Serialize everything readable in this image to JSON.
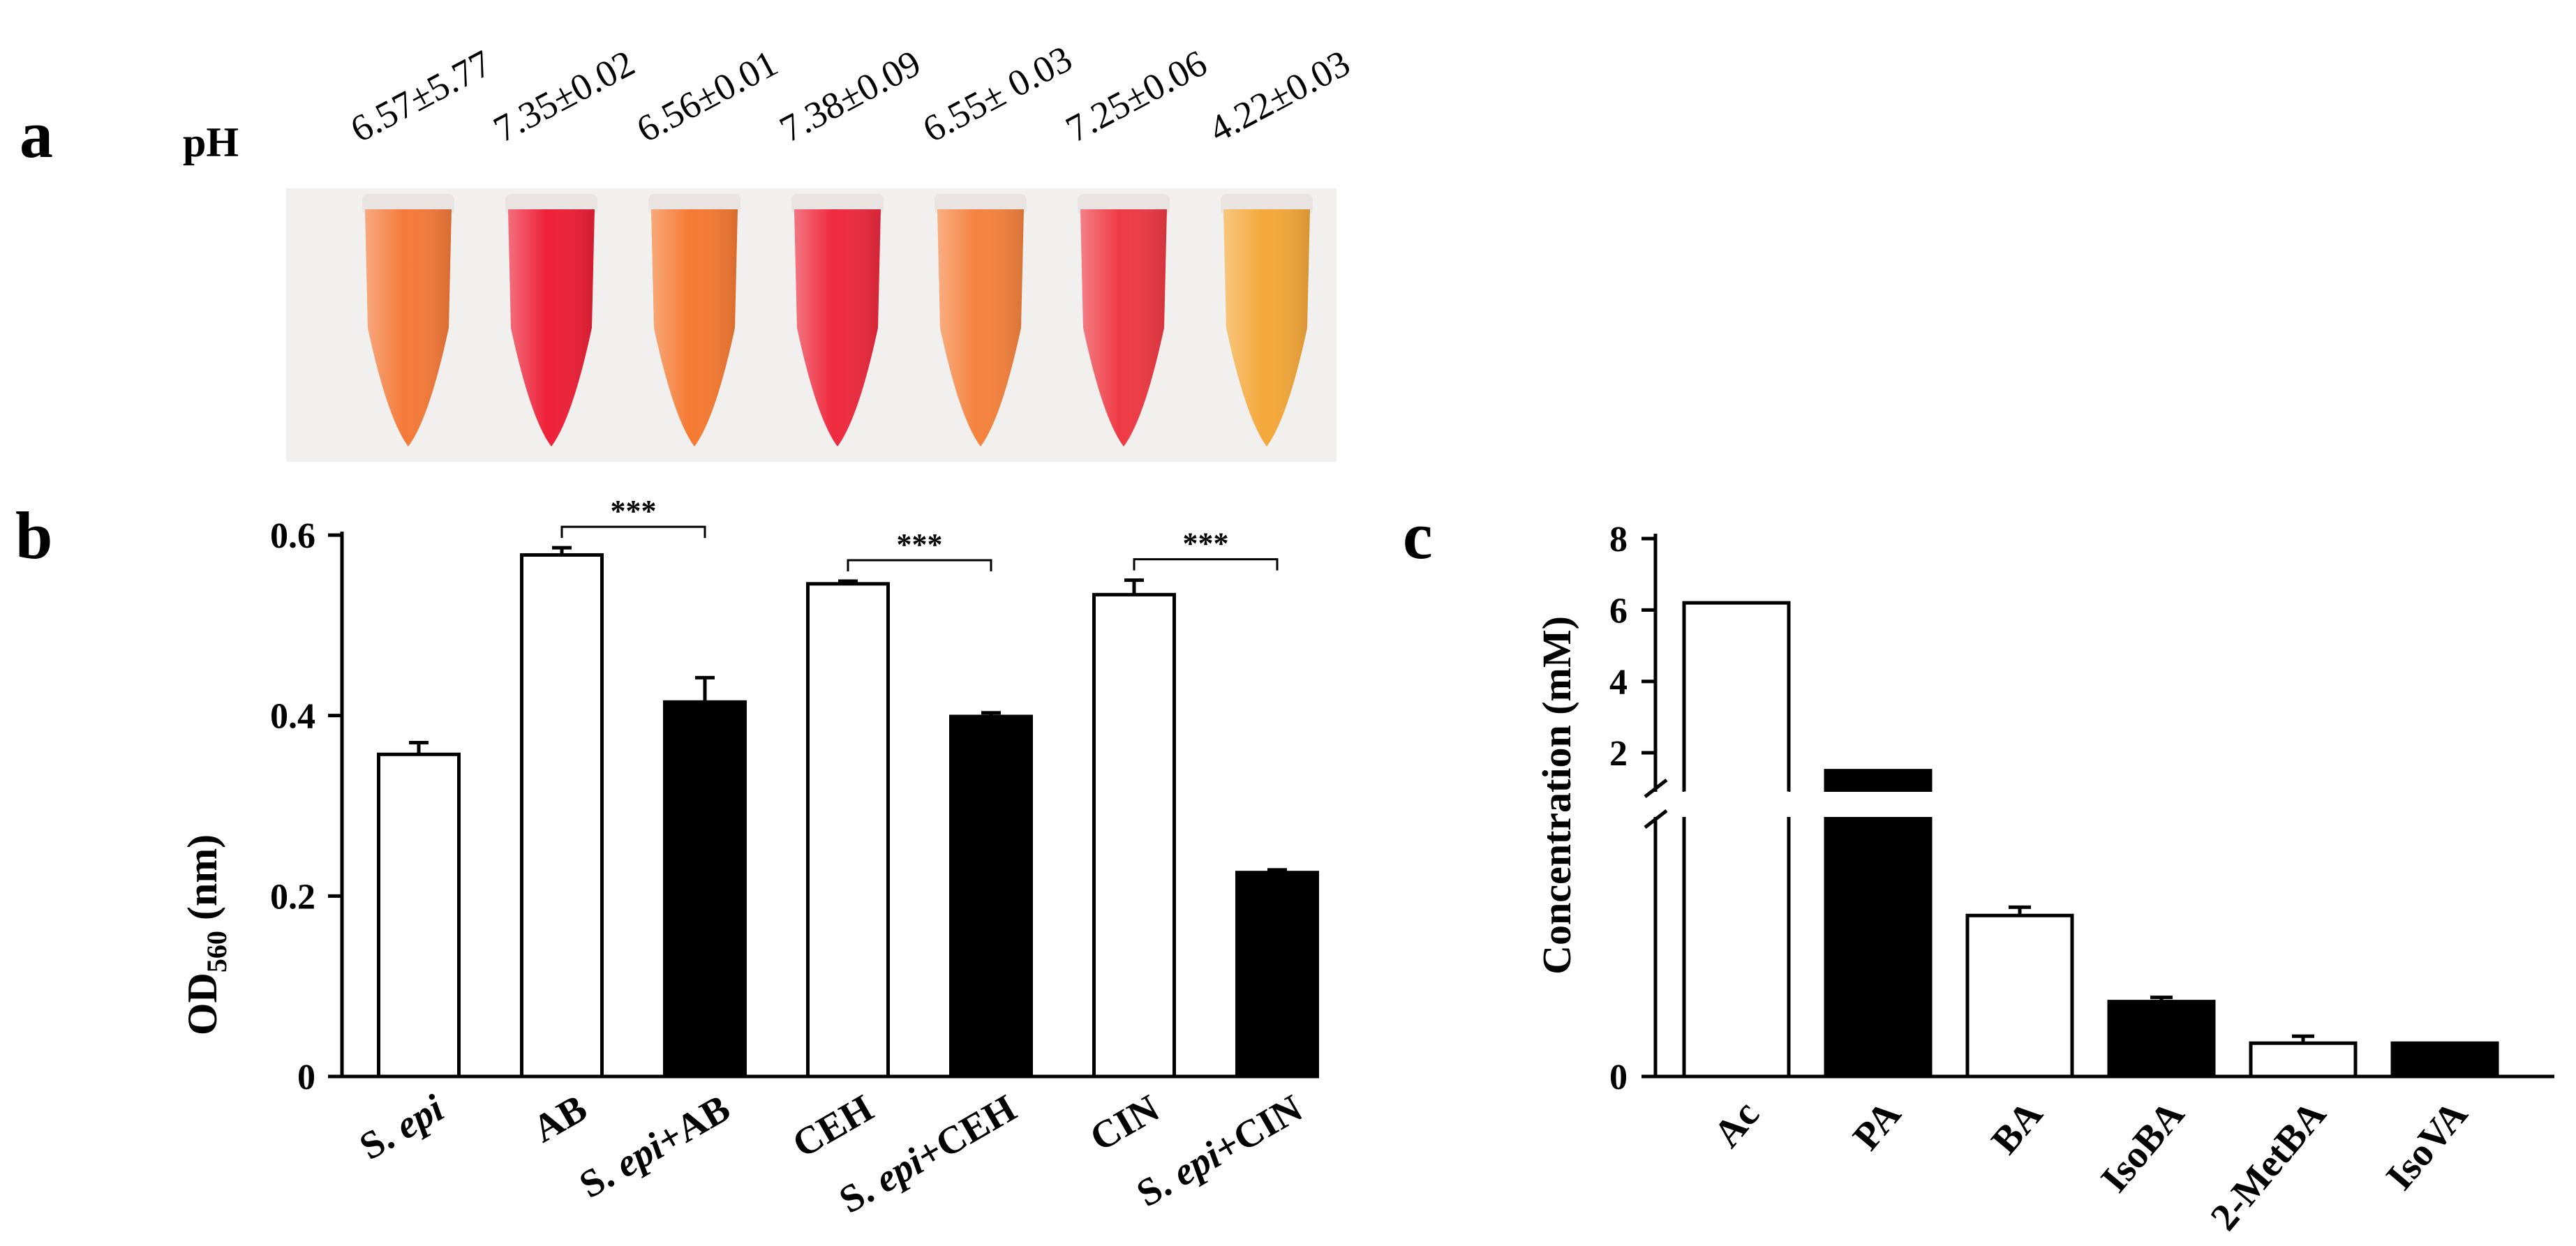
{
  "figure": {
    "panel_a": {
      "label": "a",
      "row_label": "pH",
      "ph_values": [
        "6.57±5.77",
        "7.35±0.02",
        "6.56±0.01",
        "7.38±0.09",
        "6.55± 0.03",
        "7.25±0.06",
        "4.22±0.03"
      ],
      "tube_colors": [
        "#f47a3a",
        "#ee2038",
        "#f57a32",
        "#ee2a3e",
        "#f5823e",
        "#ef3a44",
        "#f4a83a"
      ]
    }
  },
  "chart_data": [
    {
      "id": "b",
      "type": "bar",
      "title": "",
      "panel_label": "b",
      "ylabel_main": "OD",
      "ylabel_sub": "560",
      "ylabel_unit": " (nm)",
      "xlabel": "",
      "ylim": [
        0,
        0.6
      ],
      "yticks": [
        0,
        0.2,
        0.4,
        0.6
      ],
      "ytick_labels": [
        "0",
        "0.2",
        "0.4",
        "0.6"
      ],
      "categories": [
        {
          "parts": [
            {
              "t": "S. ",
              "i": false
            },
            {
              "t": "epi",
              "i": true
            }
          ]
        },
        {
          "parts": [
            {
              "t": "AB",
              "i": false
            }
          ]
        },
        {
          "parts": [
            {
              "t": "S. ",
              "i": false
            },
            {
              "t": "epi",
              "i": true
            },
            {
              "t": "+AB",
              "i": false
            }
          ]
        },
        {
          "parts": [
            {
              "t": "CEH",
              "i": false
            }
          ]
        },
        {
          "parts": [
            {
              "t": "S. ",
              "i": false
            },
            {
              "t": "epi",
              "i": true
            },
            {
              "t": "+CEH",
              "i": false
            }
          ]
        },
        {
          "parts": [
            {
              "t": "CIN",
              "i": false
            }
          ]
        },
        {
          "parts": [
            {
              "t": "S. ",
              "i": false
            },
            {
              "t": "epi",
              "i": true
            },
            {
              "t": "+CIN",
              "i": false
            }
          ]
        }
      ],
      "values": [
        0.357,
        0.578,
        0.415,
        0.546,
        0.399,
        0.534,
        0.226
      ],
      "errors": [
        0.013,
        0.008,
        0.027,
        0.003,
        0.004,
        0.016,
        0.003
      ],
      "fills": [
        "white",
        "white",
        "black",
        "white",
        "black",
        "white",
        "black"
      ],
      "significance": [
        {
          "from": 1,
          "to": 2,
          "label": "***"
        },
        {
          "from": 3,
          "to": 4,
          "label": "***"
        },
        {
          "from": 5,
          "to": 6,
          "label": "***"
        }
      ]
    },
    {
      "id": "c",
      "type": "bar",
      "title": "",
      "panel_label": "c",
      "ylabel": "Concentration (mM)",
      "xlabel": "",
      "axis_break": true,
      "upper_range": [
        1.2,
        8
      ],
      "lower_range": [
        0,
        0.9
      ],
      "yticks_upper": [
        2,
        4,
        6,
        8
      ],
      "ytick_labels_upper": [
        "2",
        "4",
        "6",
        "8"
      ],
      "yticks_lower": [
        0
      ],
      "ytick_labels_lower": [
        "0"
      ],
      "categories": [
        "Ac",
        "PA",
        "BA",
        "IsoBA",
        "2-MetBA",
        "IsoVA"
      ],
      "values": [
        6.2,
        1.5,
        0.58,
        0.27,
        0.12,
        0.12
      ],
      "errors": [
        0,
        0,
        0.02,
        0.005,
        0.015,
        0
      ],
      "fills": [
        "white",
        "black",
        "white",
        "black",
        "white",
        "black"
      ]
    }
  ]
}
